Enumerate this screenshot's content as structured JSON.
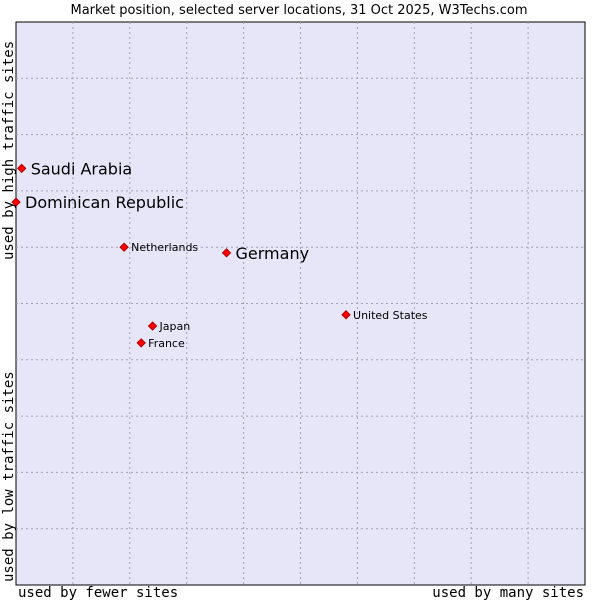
{
  "chart_data": {
    "type": "scatter",
    "title": "Market position, selected server locations, 31 Oct 2025, W3Techs.com",
    "xlabel_left": "used by fewer sites",
    "xlabel_right": "used by many sites",
    "ylabel_bottom": "used by low traffic sites",
    "ylabel_top": "used by high traffic sites",
    "xlim": [
      0,
      10
    ],
    "ylim": [
      0,
      10
    ],
    "grid": true,
    "colors": {
      "plot_bg": "#e6e6f8",
      "point": "#ff0000",
      "point_outline": "#b00000",
      "frame": "#000000"
    },
    "points": [
      {
        "name": "Saudi Arabia",
        "x": 0.1,
        "y": 7.4,
        "size": "large"
      },
      {
        "name": "Dominican Republic",
        "x": 0.0,
        "y": 6.8,
        "size": "large"
      },
      {
        "name": "Netherlands",
        "x": 1.9,
        "y": 6.0,
        "size": "small"
      },
      {
        "name": "Germany",
        "x": 3.7,
        "y": 5.9,
        "size": "large"
      },
      {
        "name": "United States",
        "x": 5.8,
        "y": 4.8,
        "size": "small"
      },
      {
        "name": "Japan",
        "x": 2.4,
        "y": 4.6,
        "size": "small"
      },
      {
        "name": "France",
        "x": 2.2,
        "y": 4.3,
        "size": "small"
      }
    ]
  }
}
